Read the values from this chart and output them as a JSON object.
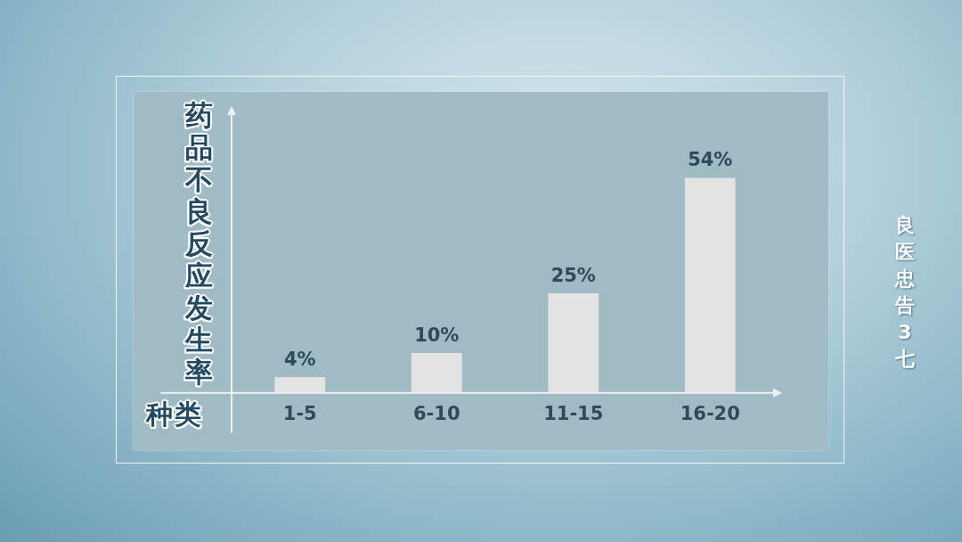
{
  "chart_data": {
    "type": "bar",
    "xlabel": "种类",
    "ylabel": "药品不良反应发生率",
    "categories": [
      "1-5",
      "6-10",
      "11-15",
      "16-20"
    ],
    "values": [
      4,
      10,
      25,
      54
    ],
    "value_labels": [
      "4%",
      "10%",
      "25%",
      "54%"
    ],
    "color": "#e3e3e3",
    "ylim": [
      0,
      70
    ],
    "tick_labels": "x",
    "annotations": [
      "良医忠告3七"
    ]
  }
}
